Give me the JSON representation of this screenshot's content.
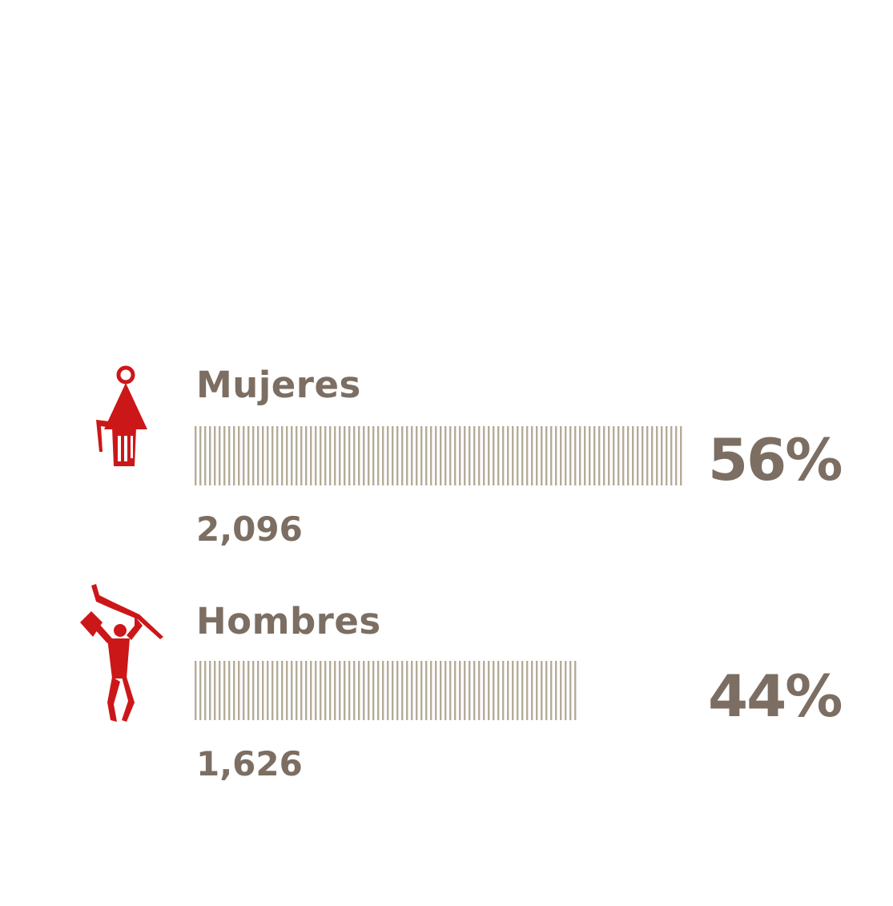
{
  "chart_data": {
    "type": "bar",
    "orientation": "horizontal",
    "categories": [
      "Mujeres",
      "Hombres"
    ],
    "values": [
      2096,
      1626
    ],
    "percent_labels": [
      "56%",
      "44%"
    ],
    "count_labels": [
      "2,096",
      "1,626"
    ],
    "percent_values": [
      56,
      44
    ],
    "title": "",
    "xlabel": "",
    "ylabel": "",
    "grid": false,
    "legend": "none"
  },
  "icons": [
    "woman-figure-icon",
    "man-figure-icon"
  ],
  "colors": {
    "text": "#7c6e62",
    "bar_stripe": "#b5ab98",
    "icon": "#cc1719"
  }
}
